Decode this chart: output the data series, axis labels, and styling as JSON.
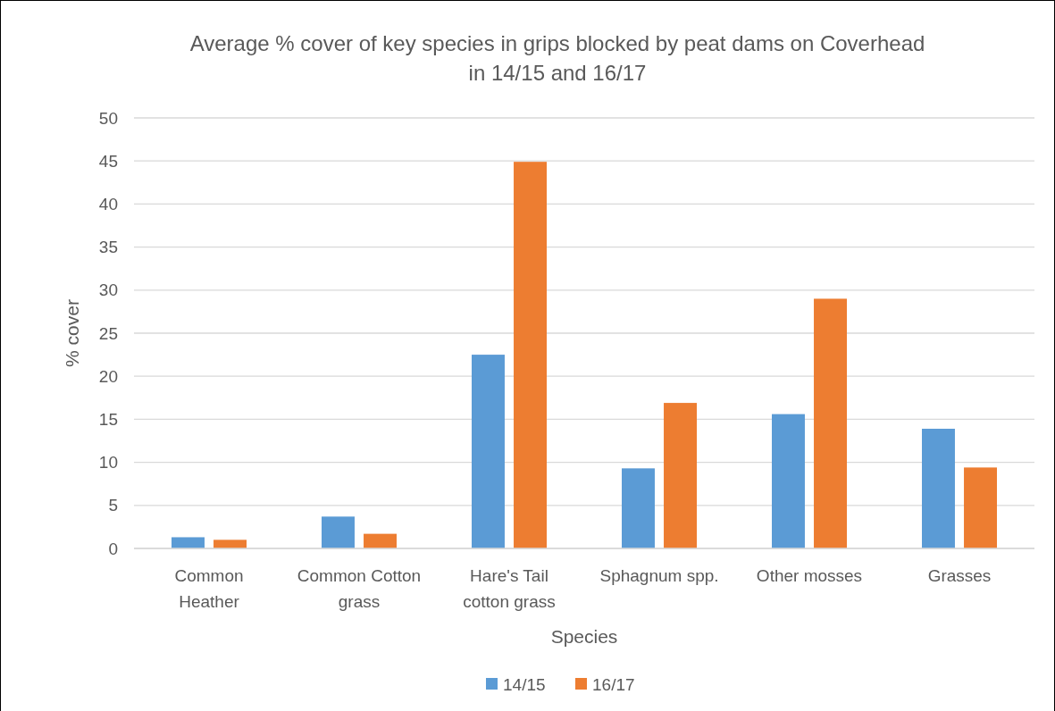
{
  "chart_data": {
    "type": "bar",
    "title": "Average % cover of key species in grips blocked by peat dams on Coverhead in 14/15 and 16/17",
    "xlabel": "Species",
    "ylabel": "% cover",
    "categories": [
      "Common Heather",
      "Common Cotton grass",
      "Hare's Tail cotton grass",
      "Sphagnum spp.",
      "Other mosses",
      "Grasses"
    ],
    "series": [
      {
        "name": "14/15",
        "color": "#5b9bd5",
        "values": [
          1.3,
          3.7,
          22.5,
          9.3,
          15.6,
          13.9
        ]
      },
      {
        "name": "16/17",
        "color": "#ed7d31",
        "values": [
          1.0,
          1.7,
          44.9,
          16.9,
          29.0,
          9.4
        ]
      }
    ],
    "ylim": [
      0,
      50
    ],
    "yticks": [
      0,
      5,
      10,
      15,
      20,
      25,
      30,
      35,
      40,
      45,
      50
    ],
    "grid": "y",
    "legend": "bottom"
  }
}
